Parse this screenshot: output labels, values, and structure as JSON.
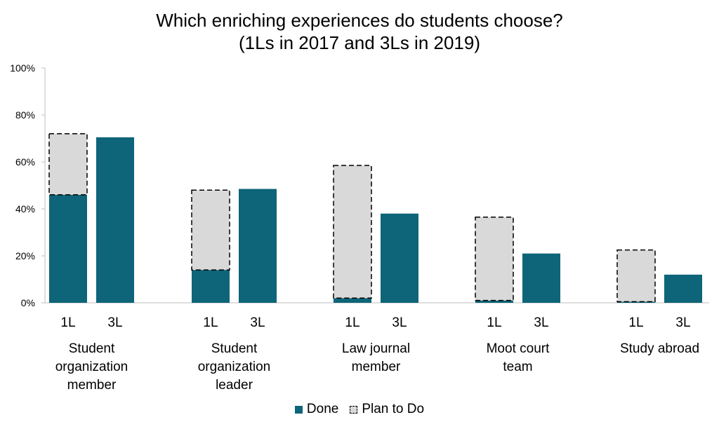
{
  "title": [
    "Which enriching experiences do students choose?",
    "(1Ls in 2017 and 3Ls in 2019)"
  ],
  "chart_data": {
    "type": "bar",
    "stacked": true,
    "categories": [
      "Student organization member",
      "Student organization leader",
      "Law journal member",
      "Moot court team",
      "Study abroad"
    ],
    "category_lines": [
      [
        "Student",
        "organization",
        "member"
      ],
      [
        "Student",
        "organization",
        "leader"
      ],
      [
        "Law journal",
        "member"
      ],
      [
        "Moot court",
        "team"
      ],
      [
        "Study abroad"
      ]
    ],
    "sub_categories": [
      "1L",
      "3L"
    ],
    "series": [
      {
        "name": "Done",
        "color": "#0e6479",
        "style": "solid",
        "values_1L": [
          46,
          14,
          2,
          1,
          0.5
        ],
        "values_3L": [
          70.5,
          48.5,
          38,
          21,
          12
        ]
      },
      {
        "name": "Plan to Do",
        "color": "#d9d9d9",
        "style": "dashed",
        "values_1L": [
          26,
          34,
          56.5,
          35.5,
          22
        ],
        "values_3L": [
          0,
          0,
          0,
          0,
          0
        ]
      }
    ],
    "ylim": [
      0,
      100
    ],
    "yticks": [
      "0%",
      "20%",
      "40%",
      "60%",
      "80%",
      "100%"
    ],
    "legend_position": "bottom",
    "grid": false
  }
}
